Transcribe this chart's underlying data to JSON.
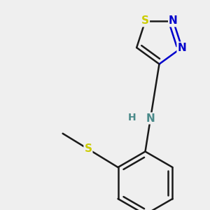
{
  "bg_color": "#efefef",
  "bond_color": "#1a1a1a",
  "S_color": "#cccc00",
  "N_color": "#0000cc",
  "NH_color": "#4a8a8a",
  "H_color": "#4a8a8a",
  "bond_width": 1.8,
  "figsize": [
    3.0,
    3.0
  ],
  "dpi": 100,
  "xlim": [
    -2.5,
    3.5
  ],
  "ylim": [
    -3.5,
    2.5
  ]
}
